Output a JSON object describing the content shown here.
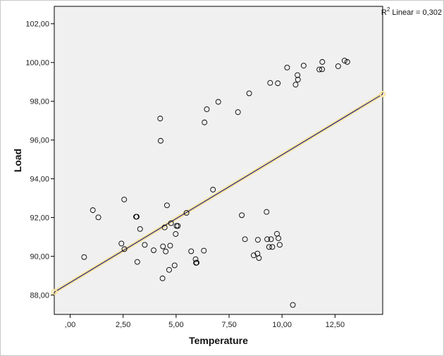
{
  "chart_data": {
    "type": "scatter",
    "xlabel": "Temperature",
    "ylabel": "Load",
    "xlim": [
      -0.75,
      14.75
    ],
    "ylim": [
      87.0,
      102.9
    ],
    "x_ticks": [
      {
        "value": 0,
        "label": ",00"
      },
      {
        "value": 2.5,
        "label": "2,50"
      },
      {
        "value": 5,
        "label": "5,00"
      },
      {
        "value": 7.5,
        "label": "7,50"
      },
      {
        "value": 10,
        "label": "10,00"
      },
      {
        "value": 12.5,
        "label": "12,50"
      }
    ],
    "y_ticks": [
      {
        "value": 88,
        "label": "88,00"
      },
      {
        "value": 90,
        "label": "90,00"
      },
      {
        "value": 92,
        "label": "92,00"
      },
      {
        "value": 94,
        "label": "94,00"
      },
      {
        "value": 96,
        "label": "96,00"
      },
      {
        "value": 98,
        "label": "98,00"
      },
      {
        "value": 100,
        "label": "100,00"
      },
      {
        "value": 102,
        "label": "102,00"
      }
    ],
    "points": [
      [
        0.66,
        89.96
      ],
      [
        1.07,
        92.38
      ],
      [
        1.33,
        92.01
      ],
      [
        2.42,
        90.66
      ],
      [
        2.55,
        92.93
      ],
      [
        2.56,
        90.37
      ],
      [
        3.11,
        92.04
      ],
      [
        3.14,
        92.04
      ],
      [
        3.17,
        89.71
      ],
      [
        3.3,
        91.41
      ],
      [
        3.52,
        90.59
      ],
      [
        3.94,
        90.31
      ],
      [
        4.25,
        97.11
      ],
      [
        4.27,
        95.96
      ],
      [
        4.36,
        88.86
      ],
      [
        4.38,
        90.51
      ],
      [
        4.46,
        91.49
      ],
      [
        4.51,
        90.25
      ],
      [
        4.57,
        92.63
      ],
      [
        4.67,
        89.3
      ],
      [
        4.72,
        90.55
      ],
      [
        4.76,
        91.71
      ],
      [
        4.93,
        89.53
      ],
      [
        4.98,
        91.15
      ],
      [
        5.02,
        91.57
      ],
      [
        5.08,
        91.57
      ],
      [
        5.49,
        92.24
      ],
      [
        5.71,
        90.26
      ],
      [
        5.92,
        89.85
      ],
      [
        5.94,
        89.66
      ],
      [
        5.97,
        89.67
      ],
      [
        6.31,
        90.29
      ],
      [
        6.34,
        96.91
      ],
      [
        6.45,
        97.59
      ],
      [
        6.74,
        93.44
      ],
      [
        6.99,
        97.97
      ],
      [
        7.92,
        97.44
      ],
      [
        8.1,
        92.12
      ],
      [
        8.25,
        90.88
      ],
      [
        8.45,
        98.41
      ],
      [
        8.66,
        90.05
      ],
      [
        8.84,
        90.14
      ],
      [
        8.86,
        90.85
      ],
      [
        8.91,
        89.91
      ],
      [
        9.27,
        92.29
      ],
      [
        9.3,
        90.88
      ],
      [
        9.39,
        90.48
      ],
      [
        9.44,
        98.95
      ],
      [
        9.48,
        90.88
      ],
      [
        9.54,
        90.48
      ],
      [
        9.76,
        91.16
      ],
      [
        9.8,
        98.93
      ],
      [
        9.83,
        90.93
      ],
      [
        9.89,
        90.59
      ],
      [
        10.24,
        99.74
      ],
      [
        10.51,
        87.49
      ],
      [
        10.64,
        98.86
      ],
      [
        10.73,
        99.35
      ],
      [
        10.75,
        99.12
      ],
      [
        11.02,
        99.84
      ],
      [
        11.76,
        99.64
      ],
      [
        11.89,
        99.65
      ],
      [
        11.9,
        100.03
      ],
      [
        12.65,
        99.81
      ],
      [
        12.95,
        100.1
      ],
      [
        13.08,
        100.03
      ]
    ],
    "fit_line": {
      "x": [
        -0.75,
        14.75
      ],
      "y": [
        88.15,
        98.37
      ]
    },
    "r2_label": {
      "prefix": "R",
      "superscript": "2",
      "text": " Linear = 0,302"
    },
    "grid": false,
    "colors": {
      "plot_bg": "#f0f0f0",
      "fit_line": "#000080",
      "fit_halo": "#f8e39c",
      "marker_edge": "#000000"
    }
  }
}
